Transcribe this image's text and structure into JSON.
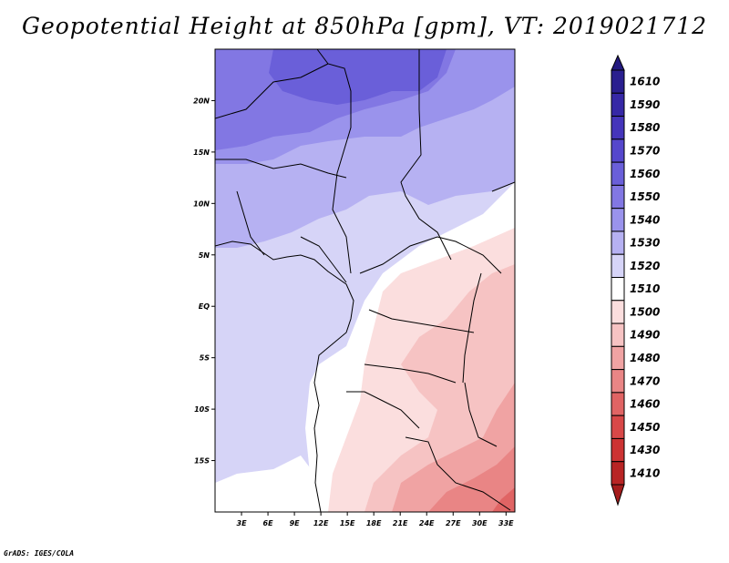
{
  "title": "Geopotential Height at 850hPa [gpm], VT: 2019021712",
  "credit": "GrADS: IGES/COLA",
  "map": {
    "lon_range": [
      0,
      34
    ],
    "lat_range": [
      -20,
      25
    ],
    "lat_ticks": [
      {
        "value": 20,
        "label": "20N"
      },
      {
        "value": 15,
        "label": "15N"
      },
      {
        "value": 10,
        "label": "10N"
      },
      {
        "value": 5,
        "label": "5N"
      },
      {
        "value": 0,
        "label": "EQ"
      },
      {
        "value": -5,
        "label": "5S"
      },
      {
        "value": -10,
        "label": "10S"
      },
      {
        "value": -15,
        "label": "15S"
      }
    ],
    "lon_ticks": [
      {
        "value": 3,
        "label": "3E"
      },
      {
        "value": 6,
        "label": "6E"
      },
      {
        "value": 9,
        "label": "9E"
      },
      {
        "value": 12,
        "label": "12E"
      },
      {
        "value": 15,
        "label": "15E"
      },
      {
        "value": 18,
        "label": "18E"
      },
      {
        "value": 21,
        "label": "21E"
      },
      {
        "value": 24,
        "label": "24E"
      },
      {
        "value": 27,
        "label": "27E"
      },
      {
        "value": 30,
        "label": "30E"
      },
      {
        "value": 33,
        "label": "33E"
      }
    ]
  },
  "colorbar": {
    "levels": [
      {
        "label": "1610",
        "color": "#2a1f8f"
      },
      {
        "label": "1590",
        "color": "#3628a6"
      },
      {
        "label": "1580",
        "color": "#4535bb"
      },
      {
        "label": "1570",
        "color": "#5547cc"
      },
      {
        "label": "1560",
        "color": "#6a5fd9"
      },
      {
        "label": "1550",
        "color": "#8277e3"
      },
      {
        "label": "1540",
        "color": "#9a93ec"
      },
      {
        "label": "1530",
        "color": "#b6b1f2"
      },
      {
        "label": "1520",
        "color": "#d6d4f7"
      },
      {
        "label": "1510",
        "color": "#ffffff"
      },
      {
        "label": "1500",
        "color": "#fbdede"
      },
      {
        "label": "1490",
        "color": "#f6c3c3"
      },
      {
        "label": "1480",
        "color": "#f0a3a3"
      },
      {
        "label": "1470",
        "color": "#e98585"
      },
      {
        "label": "1460",
        "color": "#e06464"
      },
      {
        "label": "1450",
        "color": "#d84848"
      },
      {
        "label": "1430",
        "color": "#cc3333"
      },
      {
        "label": "1410",
        "color": "#b82424"
      }
    ],
    "top_arrow_color": "#241a80",
    "bottom_arrow_color": "#a51c1c"
  }
}
